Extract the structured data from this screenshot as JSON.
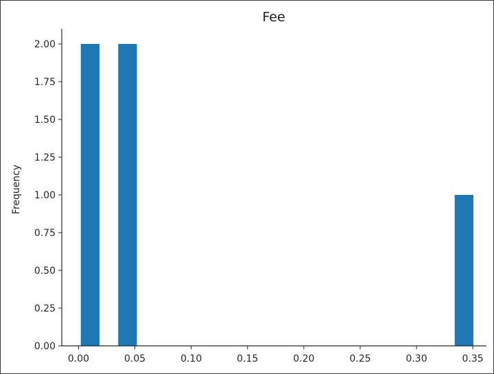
{
  "chart_data": {
    "type": "bar",
    "title": "Fee",
    "xlabel": "",
    "ylabel": "Frequency",
    "xlim": [
      -0.0149,
      0.3621
    ],
    "ylim": [
      0,
      2.1
    ],
    "grid": false,
    "legend": "none",
    "bar_color": "#1f77b4",
    "x_ticks": [
      "0.00",
      "0.05",
      "0.10",
      "0.15",
      "0.20",
      "0.25",
      "0.30",
      "0.35"
    ],
    "y_ticks": [
      "0.00",
      "0.25",
      "0.50",
      "0.75",
      "1.00",
      "1.25",
      "1.50",
      "1.75",
      "2.00"
    ],
    "bins": [
      {
        "x0": 0.002,
        "x1": 0.0186,
        "value": 2
      },
      {
        "x0": 0.0352,
        "x1": 0.0518,
        "value": 2
      },
      {
        "x0": 0.3339,
        "x1": 0.3505,
        "value": 1
      }
    ]
  }
}
